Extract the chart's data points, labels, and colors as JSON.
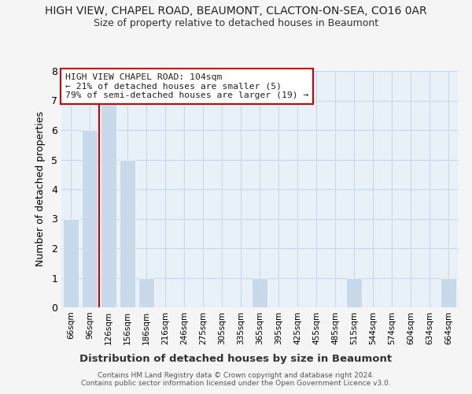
{
  "title": "HIGH VIEW, CHAPEL ROAD, BEAUMONT, CLACTON-ON-SEA, CO16 0AR",
  "subtitle": "Size of property relative to detached houses in Beaumont",
  "xlabel": "Distribution of detached houses by size in Beaumont",
  "ylabel": "Number of detached properties",
  "bar_labels": [
    "66sqm",
    "96sqm",
    "126sqm",
    "156sqm",
    "186sqm",
    "216sqm",
    "246sqm",
    "275sqm",
    "305sqm",
    "335sqm",
    "365sqm",
    "395sqm",
    "425sqm",
    "455sqm",
    "485sqm",
    "515sqm",
    "544sqm",
    "574sqm",
    "604sqm",
    "634sqm",
    "664sqm"
  ],
  "bar_values": [
    3,
    6,
    7,
    5,
    1,
    0,
    0,
    0,
    0,
    0,
    1,
    0,
    0,
    0,
    0,
    1,
    0,
    0,
    0,
    0,
    1
  ],
  "bar_color": "#c8daea",
  "property_line_x": 1.5,
  "property_line_color": "#cc0000",
  "ylim": [
    0,
    8
  ],
  "yticks": [
    0,
    1,
    2,
    3,
    4,
    5,
    6,
    7,
    8
  ],
  "grid_color": "#c8d8e8",
  "plot_bg_color": "#e8f0f8",
  "fig_bg_color": "#f5f5f5",
  "legend_text_line1": "HIGH VIEW CHAPEL ROAD: 104sqm",
  "legend_text_line2": "← 21% of detached houses are smaller (5)",
  "legend_text_line3": "79% of semi-detached houses are larger (19) →",
  "footer_line1": "Contains HM Land Registry data © Crown copyright and database right 2024.",
  "footer_line2": "Contains public sector information licensed under the Open Government Licence v3.0."
}
